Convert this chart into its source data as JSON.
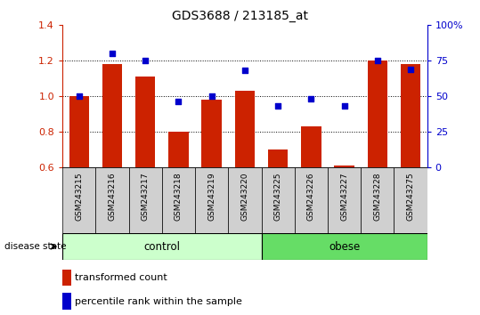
{
  "title": "GDS3688 / 213185_at",
  "samples": [
    "GSM243215",
    "GSM243216",
    "GSM243217",
    "GSM243218",
    "GSM243219",
    "GSM243220",
    "GSM243225",
    "GSM243226",
    "GSM243227",
    "GSM243228",
    "GSM243275"
  ],
  "transformed_count": [
    1.0,
    1.18,
    1.11,
    0.8,
    0.98,
    1.03,
    0.7,
    0.83,
    0.61,
    1.2,
    1.18
  ],
  "percentile_rank": [
    50,
    80,
    75,
    46,
    50,
    68,
    43,
    48,
    43,
    75,
    69
  ],
  "ylim_left": [
    0.6,
    1.4
  ],
  "ylim_right": [
    0,
    100
  ],
  "yticks_left": [
    0.6,
    0.8,
    1.0,
    1.2,
    1.4
  ],
  "yticks_right": [
    0,
    25,
    50,
    75,
    100
  ],
  "bar_color": "#cc2200",
  "dot_color": "#0000cc",
  "n_control": 6,
  "n_obese": 5,
  "control_label": "control",
  "obese_label": "obese",
  "disease_state_label": "disease state",
  "legend_bar_label": "transformed count",
  "legend_dot_label": "percentile rank within the sample",
  "control_color": "#ccffcc",
  "obese_color": "#66dd66",
  "background_color": "#d0d0d0",
  "title_color": "#000000",
  "right_axis_color": "#0000cc",
  "left_axis_color": "#cc2200"
}
